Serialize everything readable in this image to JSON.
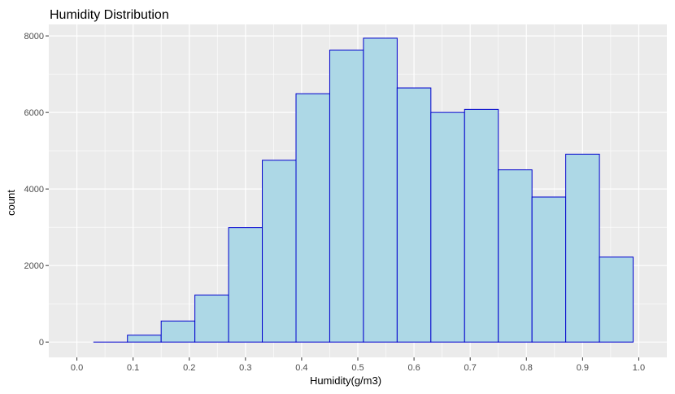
{
  "chart_data": {
    "type": "bar",
    "title": "Humidity Distribution",
    "xlabel": "Humidity(g/m3)",
    "ylabel": "count",
    "xlim": [
      -0.05,
      1.05
    ],
    "ylim": [
      -400,
      8300
    ],
    "x_ticks": [
      "0.0",
      "0.1",
      "0.2",
      "0.3",
      "0.4",
      "0.5",
      "0.6",
      "0.7",
      "0.8",
      "0.9",
      "1.0"
    ],
    "y_ticks": [
      "0",
      "2000",
      "4000",
      "6000",
      "8000"
    ],
    "bin_width": 0.06,
    "bins": [
      {
        "x0": 0.03,
        "x1": 0.09,
        "count": 0
      },
      {
        "x0": 0.09,
        "x1": 0.15,
        "count": 180
      },
      {
        "x0": 0.15,
        "x1": 0.21,
        "count": 550
      },
      {
        "x0": 0.21,
        "x1": 0.27,
        "count": 1230
      },
      {
        "x0": 0.27,
        "x1": 0.33,
        "count": 2990
      },
      {
        "x0": 0.33,
        "x1": 0.39,
        "count": 4750
      },
      {
        "x0": 0.39,
        "x1": 0.45,
        "count": 6490
      },
      {
        "x0": 0.45,
        "x1": 0.51,
        "count": 7630
      },
      {
        "x0": 0.51,
        "x1": 0.57,
        "count": 7940
      },
      {
        "x0": 0.57,
        "x1": 0.63,
        "count": 6640
      },
      {
        "x0": 0.63,
        "x1": 0.69,
        "count": 6000
      },
      {
        "x0": 0.69,
        "x1": 0.75,
        "count": 6080
      },
      {
        "x0": 0.75,
        "x1": 0.81,
        "count": 4500
      },
      {
        "x0": 0.81,
        "x1": 0.87,
        "count": 3790
      },
      {
        "x0": 0.87,
        "x1": 0.93,
        "count": 4910
      },
      {
        "x0": 0.93,
        "x1": 0.99,
        "count": 2220
      }
    ],
    "grid": true,
    "colors": {
      "panel_background": "#ebebeb",
      "grid": "#ffffff",
      "bar_fill": "#add8e6",
      "bar_outline": "#0000cd"
    }
  }
}
